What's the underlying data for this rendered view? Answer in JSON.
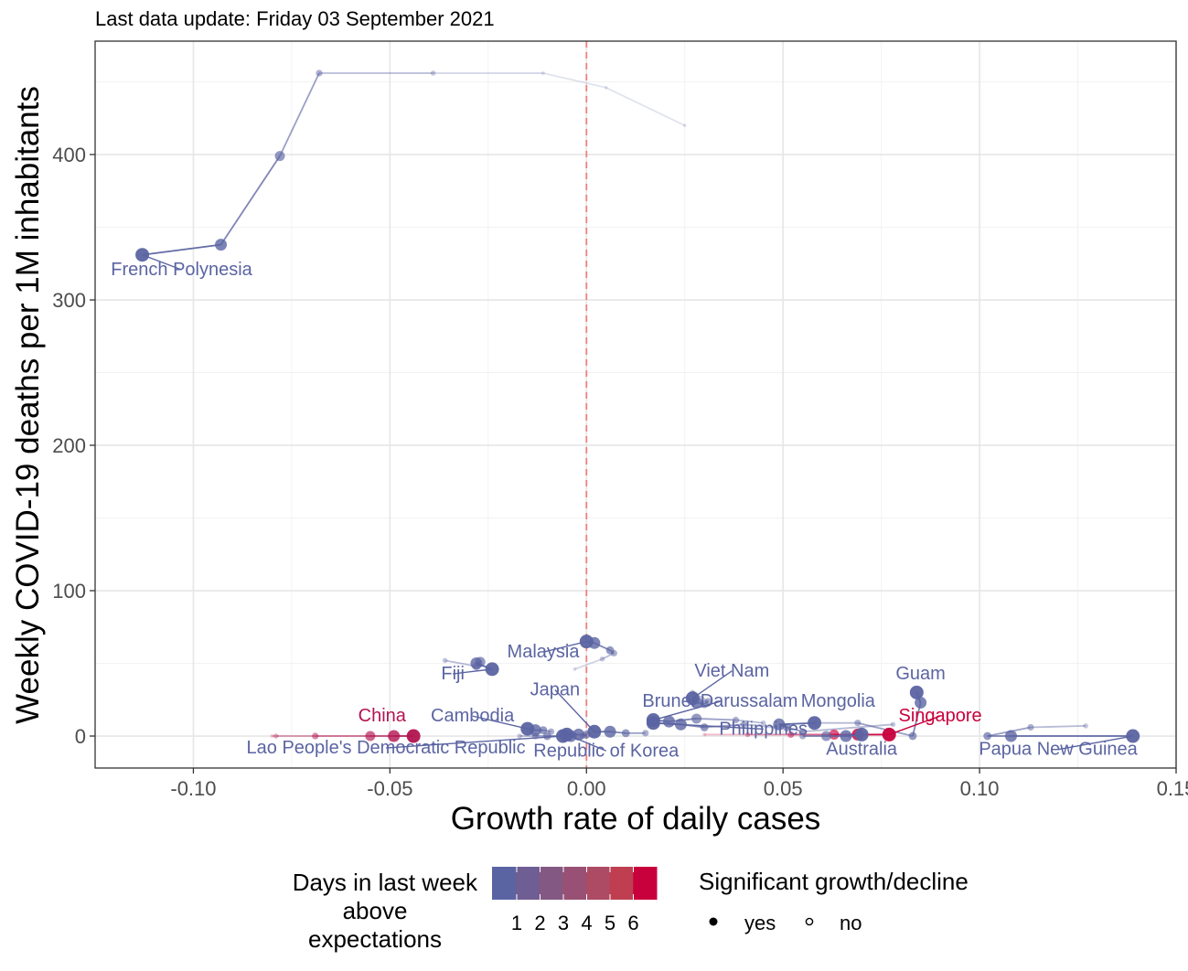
{
  "subtitle": "Last data update: Friday 03 September 2021",
  "chart_data": {
    "type": "scatter",
    "xlabel": "Growth rate of daily cases",
    "ylabel": "Weekly COVID-19 deaths per 1M inhabitants",
    "xlim": [
      -0.125,
      0.15
    ],
    "ylim": [
      -22,
      478
    ],
    "x_ticks": [
      -0.1,
      -0.05,
      0.0,
      0.05,
      0.1,
      0.15
    ],
    "x_tick_labels": [
      "-0.10",
      "-0.05",
      "0.00",
      "0.05",
      "0.10",
      "0.15"
    ],
    "y_ticks": [
      0,
      100,
      200,
      300,
      400
    ],
    "y_tick_labels": [
      "0",
      "100",
      "200",
      "300",
      "400"
    ],
    "grid": true,
    "reference_line": {
      "x": 0,
      "style": "dashed",
      "color": "#f08080"
    },
    "colors": {
      "low": "#5b64a2",
      "high": "#c8003c"
    },
    "series": [
      {
        "name": "French Polynesia",
        "days": 1,
        "label_x": -0.103,
        "label_y": 317,
        "points": [
          [
            -0.113,
            331,
            "yes"
          ],
          [
            -0.093,
            338,
            "yes"
          ],
          [
            -0.078,
            399,
            "yes"
          ],
          [
            -0.068,
            456,
            "no"
          ],
          [
            -0.039,
            456,
            "no"
          ],
          [
            -0.011,
            456,
            "no"
          ],
          [
            0.005,
            446,
            "no"
          ],
          [
            0.025,
            420,
            "no"
          ]
        ]
      },
      {
        "name": "Fiji",
        "days": 1,
        "label_x": -0.034,
        "label_y": 39,
        "points": [
          [
            -0.024,
            46,
            "yes"
          ],
          [
            -0.028,
            50,
            "yes"
          ],
          [
            -0.027,
            51,
            "yes"
          ],
          [
            -0.028,
            48,
            "yes"
          ],
          [
            -0.036,
            52,
            "no"
          ]
        ]
      },
      {
        "name": "Malaysia",
        "days": 1,
        "label_x": -0.011,
        "label_y": 54,
        "points": [
          [
            0.0,
            65,
            "yes"
          ],
          [
            0.002,
            64,
            "yes"
          ],
          [
            0.006,
            59,
            "no"
          ],
          [
            0.007,
            57,
            "no"
          ],
          [
            0.004,
            53,
            "no"
          ],
          [
            -0.003,
            46,
            "no"
          ]
        ]
      },
      {
        "name": "Viet Nam",
        "days": 1,
        "label_x": 0.037,
        "label_y": 41,
        "points": [
          [
            0.027,
            26,
            "yes"
          ],
          [
            0.028,
            23,
            "yes"
          ],
          [
            0.03,
            22,
            "no"
          ],
          [
            0.031,
            24,
            "no"
          ],
          [
            0.027,
            30,
            "no"
          ]
        ]
      },
      {
        "name": "Guam",
        "days": 1,
        "label_x": 0.085,
        "label_y": 39,
        "points": [
          [
            0.084,
            30,
            "yes"
          ],
          [
            0.085,
            23,
            "yes"
          ],
          [
            0.083,
            0,
            "no"
          ],
          [
            0.069,
            9,
            "no"
          ],
          [
            0.058,
            9,
            "no"
          ]
        ]
      },
      {
        "name": "Brunei Darussalam",
        "days": 1,
        "label_x": 0.034,
        "label_y": 20,
        "points": [
          [
            0.017,
            11,
            "yes"
          ],
          [
            0.021,
            10,
            "yes"
          ],
          [
            0.028,
            12,
            "yes"
          ],
          [
            0.038,
            11,
            "no"
          ],
          [
            0.045,
            9,
            "no"
          ]
        ]
      },
      {
        "name": "Mongolia",
        "days": 1,
        "label_x": 0.064,
        "label_y": 20,
        "points": [
          [
            0.058,
            9,
            "yes"
          ],
          [
            0.049,
            8,
            "yes"
          ],
          [
            0.051,
            6,
            "no"
          ],
          [
            0.055,
            3,
            "no"
          ],
          [
            0.078,
            8,
            "no"
          ]
        ]
      },
      {
        "name": "Philippines",
        "days": 1,
        "label_x": 0.045,
        "label_y": 1,
        "points": [
          [
            0.017,
            9,
            "yes"
          ],
          [
            0.024,
            8,
            "yes"
          ],
          [
            0.03,
            6,
            "no"
          ],
          [
            0.04,
            8,
            "no"
          ],
          [
            0.048,
            6,
            "no"
          ]
        ]
      },
      {
        "name": "Japan",
        "days": 1,
        "label_x": -0.008,
        "label_y": 28,
        "points": [
          [
            0.002,
            3,
            "yes"
          ],
          [
            0.006,
            3,
            "yes"
          ],
          [
            0.01,
            2,
            "no"
          ],
          [
            0.015,
            2,
            "no"
          ]
        ]
      },
      {
        "name": "Cambodia",
        "days": 1,
        "label_x": -0.029,
        "label_y": 10,
        "points": [
          [
            -0.015,
            5,
            "yes"
          ],
          [
            -0.013,
            4,
            "yes"
          ],
          [
            -0.011,
            4,
            "no"
          ],
          [
            -0.009,
            3,
            "no"
          ]
        ]
      },
      {
        "name": "Republic of Korea",
        "days": 1,
        "label_x": 0.005,
        "label_y": -14,
        "points": [
          [
            -0.005,
            1,
            "yes"
          ],
          [
            -0.002,
            1,
            "yes"
          ],
          [
            0.0,
            1,
            "no"
          ],
          [
            -0.001,
            0,
            "no"
          ]
        ]
      },
      {
        "name": "Lao People's Democratic Republic",
        "days": 1,
        "label_x": -0.051,
        "label_y": -12,
        "points": [
          [
            -0.006,
            0,
            "yes"
          ],
          [
            -0.004,
            0,
            "yes"
          ],
          [
            -0.01,
            0,
            "no"
          ],
          [
            -0.013,
            0,
            "no"
          ],
          [
            -0.017,
            0,
            "no"
          ]
        ]
      },
      {
        "name": "China",
        "days": 5,
        "label_x": -0.052,
        "label_y": 10,
        "points": [
          [
            -0.044,
            0,
            "yes"
          ],
          [
            -0.049,
            0,
            "yes"
          ],
          [
            -0.055,
            0,
            "yes"
          ],
          [
            -0.069,
            0,
            "no"
          ],
          [
            -0.079,
            0,
            "no"
          ],
          [
            -0.08,
            0,
            "no"
          ]
        ]
      },
      {
        "name": "Singapore",
        "days": 6,
        "label_x": 0.09,
        "label_y": 10,
        "points": [
          [
            0.077,
            1,
            "yes"
          ],
          [
            0.069,
            1,
            "yes"
          ],
          [
            0.063,
            1,
            "yes"
          ],
          [
            0.052,
            1,
            "no"
          ],
          [
            0.041,
            1,
            "no"
          ],
          [
            0.03,
            1,
            "no"
          ]
        ]
      },
      {
        "name": "Australia",
        "days": 1,
        "label_x": 0.07,
        "label_y": -13,
        "points": [
          [
            0.07,
            1,
            "yes"
          ],
          [
            0.066,
            0,
            "yes"
          ],
          [
            0.061,
            0,
            "yes"
          ],
          [
            0.055,
            0,
            "no"
          ],
          [
            0.067,
            0,
            "no"
          ]
        ]
      },
      {
        "name": "Papua New Guinea",
        "days": 1,
        "label_x": 0.12,
        "label_y": -13,
        "points": [
          [
            0.139,
            0,
            "yes"
          ],
          [
            0.108,
            0,
            "yes"
          ],
          [
            0.102,
            0,
            "no"
          ],
          [
            0.113,
            6,
            "no"
          ],
          [
            0.127,
            7,
            "no"
          ]
        ]
      }
    ],
    "legend": {
      "color_title": [
        "Days in last week",
        "above",
        "expectations"
      ],
      "color_steps": [
        "#5b64a2",
        "#6f5e93",
        "#835883",
        "#985174",
        "#ad4a64",
        "#bf3f51",
        "#c8003c"
      ],
      "color_labels": [
        "1",
        "2",
        "3",
        "4",
        "5",
        "6"
      ],
      "shape_title": "Significant growth/decline",
      "shape_items": [
        "yes",
        "no"
      ],
      "placement": "bottom"
    }
  }
}
